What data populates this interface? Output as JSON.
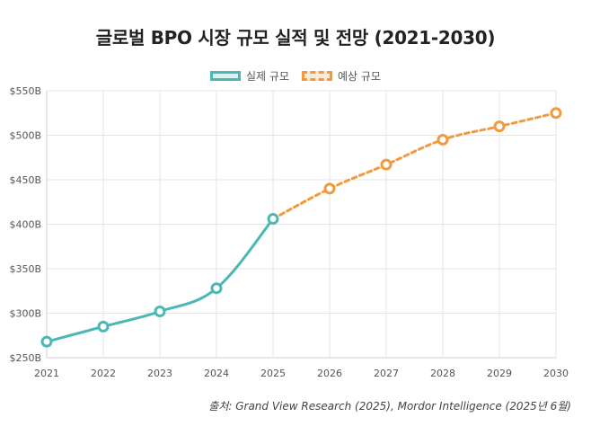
{
  "title": "글로벌 BPO 시장 규모 실적 및 전망 (2021-2030)",
  "legend": {
    "actual": "실제 규모",
    "forecast": "예상 규모"
  },
  "source": "출처: Grand View Research (2025), Mordor Intelligence (2025년 6월)",
  "colors": {
    "actual": "#4bb8b6",
    "forecast": "#f19a3e",
    "grid": "#e6e6e6",
    "axis": "#555555"
  },
  "chart_data": {
    "type": "line",
    "title": "글로벌 BPO 시장 규모 실적 및 전망 (2021-2030)",
    "xlabel": "",
    "ylabel": "",
    "x": [
      "2021",
      "2022",
      "2023",
      "2024",
      "2025",
      "2026",
      "2027",
      "2028",
      "2029",
      "2030"
    ],
    "ylim": [
      250,
      550
    ],
    "yticks": [
      250,
      300,
      350,
      400,
      450,
      500,
      550
    ],
    "ytick_labels": [
      "$250B",
      "$300B",
      "$350B",
      "$400B",
      "$450B",
      "$500B",
      "$550B"
    ],
    "series": [
      {
        "name": "실제 규모",
        "x": [
          "2021",
          "2022",
          "2023",
          "2024",
          "2025"
        ],
        "values": [
          268,
          285,
          302,
          328,
          406
        ],
        "style": "solid"
      },
      {
        "name": "예상 규모",
        "x": [
          "2025",
          "2026",
          "2027",
          "2028",
          "2029",
          "2030"
        ],
        "values": [
          406,
          440,
          467,
          495,
          510,
          525
        ],
        "style": "dashed"
      }
    ],
    "legend_position": "top-center",
    "grid": true
  }
}
